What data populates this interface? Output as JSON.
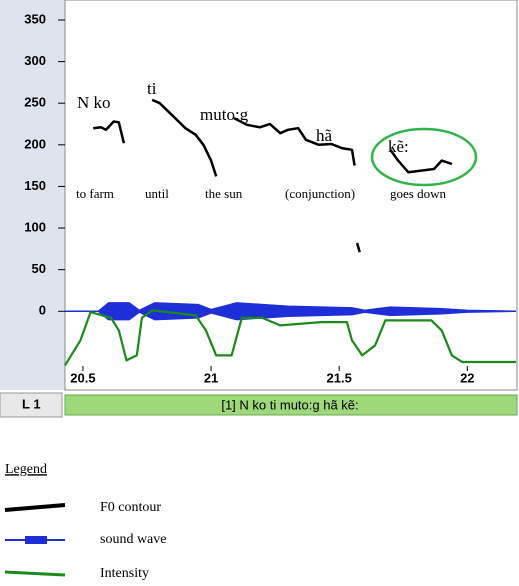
{
  "chart_data": {
    "type": "line",
    "xlim": [
      20.43,
      22.19
    ],
    "xticks": [
      20.5,
      21,
      21.5,
      22
    ],
    "ylim": [
      -91,
      368
    ],
    "yticks": [
      0,
      50,
      100,
      150,
      200,
      250,
      300,
      350
    ],
    "words": [
      "N ko",
      "ti",
      "muto:g",
      "hã",
      "kẽ:"
    ],
    "glosses": [
      "to farm",
      "until",
      "the sun",
      "(conjunction)",
      "goes down"
    ],
    "tier": {
      "name": "L 1",
      "text": "[1] N ko ti muto:g hã kẽ:"
    },
    "legend_title": "Legend",
    "series": [
      {
        "name": "F0 contour",
        "color": "#000000",
        "x": [
          20.54,
          20.57,
          20.59,
          20.62,
          20.64,
          20.66,
          null,
          20.77,
          20.8,
          20.82,
          20.86,
          20.9,
          20.94,
          20.97,
          21.0,
          21.02,
          null,
          21.09,
          21.14,
          21.19,
          21.23,
          21.27,
          21.3,
          21.34,
          21.37,
          21.42,
          21.47,
          21.51,
          21.55,
          21.56,
          null,
          21.57,
          21.58,
          null,
          21.7,
          21.73,
          21.77,
          21.82,
          21.87,
          21.9,
          21.94
        ],
        "values": [
          220,
          221,
          218,
          228,
          227,
          202,
          null,
          254,
          250,
          244,
          232,
          220,
          212,
          200,
          181,
          162,
          null,
          232,
          224,
          221,
          225,
          214,
          218,
          220,
          206,
          200,
          201,
          196,
          194,
          175,
          null,
          82,
          71,
          null,
          194,
          181,
          167,
          169,
          171,
          181,
          177
        ]
      },
      {
        "name": "sound wave",
        "color": "#1f2fd8",
        "x": [
          20.43,
          20.56,
          20.6,
          20.68,
          20.72,
          20.78,
          20.95,
          21.0,
          21.1,
          21.3,
          21.55,
          21.6,
          21.7,
          21.9,
          22.0,
          22.19
        ],
        "values": [
          0,
          0,
          10,
          10,
          1,
          10,
          8,
          2,
          10,
          6,
          4,
          1,
          5,
          3,
          1,
          0
        ]
      },
      {
        "name": "Intensity",
        "color": "#1a8a1a",
        "x": [
          20.43,
          20.49,
          20.53,
          20.61,
          20.64,
          20.67,
          20.71,
          20.73,
          20.77,
          20.94,
          20.98,
          21.02,
          21.08,
          21.12,
          21.2,
          21.27,
          21.43,
          21.53,
          21.55,
          21.59,
          21.64,
          21.68,
          21.86,
          21.9,
          21.94,
          21.98,
          22.19
        ],
        "values": [
          -65,
          -35,
          -1,
          -8,
          -23,
          -59,
          -53,
          -8,
          1,
          -5,
          -23,
          -53,
          -53,
          -8,
          -8,
          -17,
          -13,
          -13,
          -35,
          -53,
          -41,
          -11,
          -11,
          -23,
          -53,
          -61,
          -61
        ]
      }
    ]
  }
}
